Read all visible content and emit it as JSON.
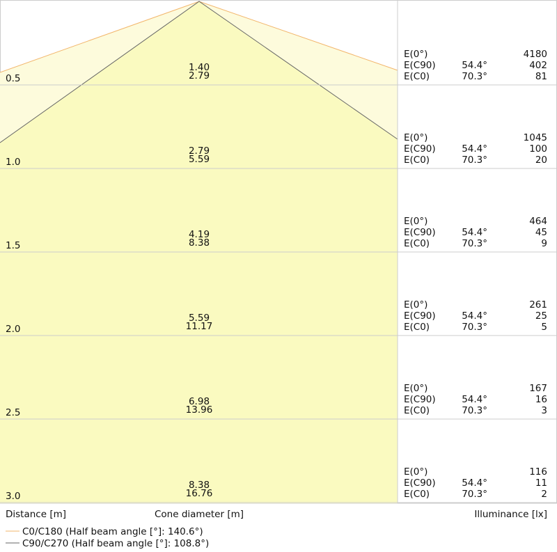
{
  "rows": [
    {
      "distance": "0.5",
      "diameters": [
        "1.40",
        "2.79"
      ],
      "values": [
        "4180",
        "402",
        "81"
      ]
    },
    {
      "distance": "1.0",
      "diameters": [
        "2.79",
        "5.59"
      ],
      "values": [
        "1045",
        "100",
        "20"
      ]
    },
    {
      "distance": "1.5",
      "diameters": [
        "4.19",
        "8.38"
      ],
      "values": [
        "464",
        "45",
        "9"
      ]
    },
    {
      "distance": "2.0",
      "diameters": [
        "5.59",
        "11.17"
      ],
      "values": [
        "261",
        "25",
        "5"
      ]
    },
    {
      "distance": "2.5",
      "diameters": [
        "6.98",
        "13.96"
      ],
      "values": [
        "167",
        "16",
        "3"
      ]
    },
    {
      "distance": "3.0",
      "diameters": [
        "8.38",
        "16.76"
      ],
      "values": [
        "116",
        "11",
        "2"
      ]
    }
  ],
  "illuminance_labels": [
    "E(0°)",
    "E(C90)",
    "E(C0)"
  ],
  "angles": [
    "54.4°",
    "70.3°"
  ],
  "footer": {
    "distance": "Distance [m]",
    "cone_diameter": "Cone diameter [m]",
    "illuminance": "Illuminance [lx]"
  },
  "legend": [
    "C0/C180 (Half beam angle [°]: 140.6°)",
    "C90/C270 (Half beam angle [°]: 108.8°)"
  ]
}
